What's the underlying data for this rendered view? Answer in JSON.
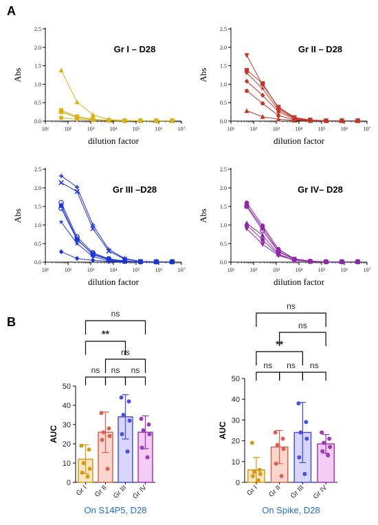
{
  "panel_labels": {
    "a": "A",
    "b": "B"
  },
  "chart_data": [
    {
      "type": "line",
      "title": "Gr I – D28",
      "xlabel": "dilution factor",
      "ylabel": "Abs",
      "xscale": "log",
      "xlim": [
        10,
        10000000
      ],
      "ylim": [
        0,
        2.5
      ],
      "yticks": [
        0.0,
        0.5,
        1.0,
        1.5,
        2.0,
        2.5
      ],
      "x": [
        50,
        250,
        1250,
        6250,
        31250,
        156250,
        781250,
        3906250
      ],
      "color": "#d9b21a",
      "series": [
        {
          "marker": "triangle",
          "values": [
            1.38,
            0.52,
            0.17,
            0.04,
            0.02,
            0.01,
            0.01,
            0.01
          ]
        },
        {
          "marker": "square",
          "values": [
            0.29,
            0.12,
            0.05,
            0.02,
            0.01,
            0.01,
            0.01,
            0.01
          ]
        },
        {
          "marker": "square",
          "values": [
            0.25,
            0.1,
            0.04,
            0.02,
            0.01,
            0.01,
            0.01,
            0.01
          ]
        },
        {
          "marker": "circle",
          "values": [
            0.09,
            0.05,
            0.03,
            0.02,
            0.01,
            0.01,
            0.01,
            0.01
          ]
        }
      ]
    },
    {
      "type": "line",
      "title": "Gr II – D28",
      "xlabel": "dilution factor",
      "ylabel": "Abs",
      "xscale": "log",
      "xlim": [
        10,
        10000000
      ],
      "ylim": [
        0,
        2.5
      ],
      "yticks": [
        0.0,
        0.5,
        1.0,
        1.5,
        2.0,
        2.5
      ],
      "x": [
        50,
        250,
        1250,
        6250,
        31250,
        156250,
        781250,
        3906250
      ],
      "color": "#c0392b",
      "series": [
        {
          "marker": "triangle-down",
          "values": [
            1.78,
            0.98,
            0.38,
            0.1,
            0.03,
            0.01,
            0.01,
            0.01
          ]
        },
        {
          "marker": "square",
          "values": [
            1.38,
            1.02,
            0.35,
            0.09,
            0.03,
            0.01,
            0.01,
            0.01
          ]
        },
        {
          "marker": "star",
          "values": [
            1.3,
            0.88,
            0.3,
            0.08,
            0.02,
            0.01,
            0.01,
            0.01
          ]
        },
        {
          "marker": "diamond",
          "values": [
            1.08,
            0.7,
            0.25,
            0.06,
            0.02,
            0.01,
            0.01,
            0.01
          ]
        },
        {
          "marker": "hexagon",
          "values": [
            0.82,
            0.48,
            0.15,
            0.04,
            0.01,
            0.01,
            0.01,
            0.01
          ]
        },
        {
          "marker": "triangle",
          "values": [
            0.28,
            0.12,
            0.05,
            0.02,
            0.01,
            0.01,
            0.01,
            0.01
          ]
        }
      ]
    },
    {
      "type": "line",
      "title": "Gr III –D28",
      "xlabel": "dilution factor",
      "ylabel": "Abs",
      "xscale": "log",
      "xlim": [
        10,
        10000000
      ],
      "ylim": [
        0,
        2.5
      ],
      "yticks": [
        0.0,
        0.5,
        1.0,
        1.5,
        2.0,
        2.5
      ],
      "x": [
        50,
        250,
        1250,
        6250,
        31250,
        156250,
        781250,
        3906250
      ],
      "color": "#1e35d6",
      "series": [
        {
          "marker": "plus",
          "values": [
            2.32,
            2.02,
            1.0,
            0.34,
            0.1,
            0.02,
            0.01,
            0.01
          ]
        },
        {
          "marker": "x",
          "values": [
            2.14,
            1.9,
            0.9,
            0.3,
            0.08,
            0.02,
            0.01,
            0.01
          ]
        },
        {
          "marker": "circle-open",
          "values": [
            1.6,
            0.68,
            0.25,
            0.09,
            0.03,
            0.01,
            0.01,
            0.01
          ]
        },
        {
          "marker": "square",
          "values": [
            1.52,
            0.62,
            0.2,
            0.07,
            0.02,
            0.01,
            0.01,
            0.01
          ]
        },
        {
          "marker": "circle-open",
          "values": [
            1.45,
            0.6,
            0.22,
            0.08,
            0.03,
            0.01,
            0.01,
            0.01
          ]
        },
        {
          "marker": "star",
          "values": [
            1.08,
            0.5,
            0.15,
            0.04,
            0.02,
            0.01,
            0.01,
            0.01
          ]
        },
        {
          "marker": "diamond",
          "values": [
            0.28,
            0.1,
            0.05,
            0.02,
            0.01,
            0.01,
            0.01,
            0.01
          ]
        }
      ]
    },
    {
      "type": "line",
      "title": "Gr IV– D28",
      "xlabel": "dilution factor",
      "ylabel": "Abs",
      "xscale": "log",
      "xlim": [
        10,
        10000000
      ],
      "ylim": [
        0,
        2.5
      ],
      "yticks": [
        0.0,
        0.5,
        1.0,
        1.5,
        2.0,
        2.5
      ],
      "x": [
        50,
        250,
        1250,
        6250,
        31250,
        156250,
        781250,
        3906250
      ],
      "color": "#8e2aa8",
      "series": [
        {
          "marker": "circle",
          "values": [
            1.6,
            0.98,
            0.35,
            0.09,
            0.03,
            0.01,
            0.01,
            0.01
          ]
        },
        {
          "marker": "square",
          "values": [
            1.52,
            0.92,
            0.3,
            0.08,
            0.02,
            0.01,
            0.01,
            0.01
          ]
        },
        {
          "marker": "triangle",
          "values": [
            1.05,
            0.72,
            0.22,
            0.05,
            0.02,
            0.01,
            0.01,
            0.01
          ]
        },
        {
          "marker": "circle",
          "values": [
            1.0,
            0.6,
            0.2,
            0.05,
            0.02,
            0.01,
            0.01,
            0.01
          ]
        },
        {
          "marker": "triangle-down",
          "values": [
            0.9,
            0.48,
            0.18,
            0.05,
            0.02,
            0.01,
            0.01,
            0.01
          ]
        },
        {
          "marker": "circle-open",
          "values": [
            1.5,
            0.85,
            0.28,
            0.07,
            0.02,
            0.01,
            0.01,
            0.01
          ]
        }
      ]
    },
    {
      "type": "bar",
      "ylabel": "AUC",
      "caption": "On S14P5, D28",
      "ylim": [
        0,
        50
      ],
      "yticks": [
        0,
        10,
        20,
        30,
        40,
        50
      ],
      "categories": [
        "Gr I",
        "Gr II",
        "Gr III",
        "Gr IV"
      ],
      "means": [
        12,
        26,
        34,
        26
      ],
      "errors": [
        7.5,
        10.5,
        11.5,
        8.5
      ],
      "points": [
        [
          19,
          17,
          10,
          7,
          5,
          3
        ],
        [
          36,
          28,
          26,
          24,
          22,
          7
        ],
        [
          44,
          42,
          35,
          32,
          25,
          16
        ],
        [
          33,
          30,
          27,
          25,
          18,
          13
        ]
      ],
      "comparisons": [
        {
          "groups": [
            0,
            1
          ],
          "label": "ns"
        },
        {
          "groups": [
            1,
            2
          ],
          "label": "ns"
        },
        {
          "groups": [
            2,
            3
          ],
          "label": "ns"
        },
        {
          "groups": [
            1,
            3
          ],
          "label": "ns"
        },
        {
          "groups": [
            0,
            2
          ],
          "label": "**"
        },
        {
          "groups": [
            0,
            3
          ],
          "label": "ns"
        }
      ]
    },
    {
      "type": "bar",
      "ylabel": "AUC",
      "caption": "On Spike, D28",
      "ylim": [
        0,
        50
      ],
      "yticks": [
        0,
        10,
        20,
        30,
        40,
        50
      ],
      "categories": [
        "Gr I",
        "Gr II",
        "Gr III",
        "Gr IV"
      ],
      "means": [
        6,
        17,
        24,
        18.5
      ],
      "errors": [
        6,
        8,
        14.5,
        4.5
      ],
      "points": [
        [
          19,
          6,
          5,
          4,
          3,
          1
        ],
        [
          24,
          21,
          18,
          16,
          9,
          3
        ],
        [
          38,
          29,
          24,
          21,
          12,
          4
        ],
        [
          24,
          21,
          19,
          17,
          15,
          13
        ]
      ],
      "comparisons": [
        {
          "groups": [
            0,
            1
          ],
          "label": "ns"
        },
        {
          "groups": [
            1,
            2
          ],
          "label": "ns"
        },
        {
          "groups": [
            2,
            3
          ],
          "label": "ns"
        },
        {
          "groups": [
            0,
            2
          ],
          "label": "**"
        },
        {
          "groups": [
            1,
            3
          ],
          "label": "ns"
        },
        {
          "groups": [
            0,
            3
          ],
          "label": "ns"
        }
      ]
    }
  ],
  "bar_style": {
    "fills": [
      "#fde7c2",
      "#fbd6cf",
      "#d8d6fb",
      "#f3cbf3"
    ],
    "strokes": [
      "#d69a1a",
      "#d9624f",
      "#4a4fe0",
      "#9b3ab5"
    ],
    "caption_color": "#1f6fc9"
  }
}
